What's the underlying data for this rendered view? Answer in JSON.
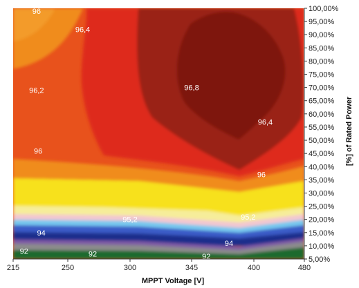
{
  "chart_data": {
    "type": "heatmap",
    "title": "",
    "xlabel": "MPPT Voltage [V]",
    "ylabel": "[%] of Rated Power",
    "x_ticks": [
      "215",
      "250",
      "300",
      "345",
      "400",
      "480"
    ],
    "y_ticks": [
      "5,00%",
      "10,00%",
      "15,00%",
      "20,00%",
      "25,00%",
      "30,00%",
      "35,00%",
      "40,00%",
      "45,00%",
      "50,00%",
      "55,00%",
      "60,00%",
      "65,00%",
      "70,00%",
      "75,00%",
      "80,00%",
      "85,00%",
      "90,00%",
      "95,00%",
      "100,00%"
    ],
    "x_range": [
      215,
      480
    ],
    "y_range": [
      5,
      100
    ],
    "legend": "none",
    "contour_labels": [
      {
        "text": "96",
        "x": 230,
        "y": 99
      },
      {
        "text": "96,4",
        "x": 262,
        "y": 92
      },
      {
        "text": "96,2",
        "x": 230,
        "y": 69
      },
      {
        "text": "96,8",
        "x": 345,
        "y": 70
      },
      {
        "text": "96,4",
        "x": 418,
        "y": 57
      },
      {
        "text": "96",
        "x": 231,
        "y": 46
      },
      {
        "text": "96",
        "x": 412,
        "y": 37
      },
      {
        "text": "95,2",
        "x": 300,
        "y": 20
      },
      {
        "text": "95,2",
        "x": 395,
        "y": 21
      },
      {
        "text": "94",
        "x": 233,
        "y": 15
      },
      {
        "text": "94",
        "x": 378,
        "y": 11
      },
      {
        "text": "92",
        "x": 222,
        "y": 8
      },
      {
        "text": "92",
        "x": 270,
        "y": 7
      },
      {
        "text": "92",
        "x": 358,
        "y": 6
      }
    ],
    "colors": {
      "peak": "#7e140c",
      "dark_red": "#9a2213",
      "red": "#de2a1c",
      "orange_red": "#e8521c",
      "orange": "#f08c1a",
      "yellow": "#f7e11a",
      "blue": "#3a5bc7",
      "navy": "#1f2f8c",
      "green": "#1d6b2f"
    }
  }
}
